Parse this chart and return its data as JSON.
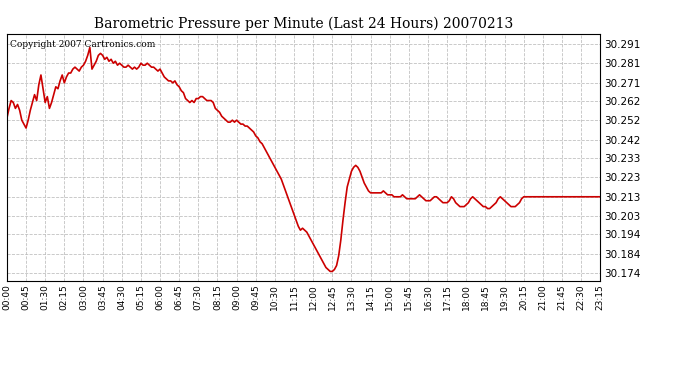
{
  "title": "Barometric Pressure per Minute (Last 24 Hours) 20070213",
  "copyright": "Copyright 2007 Cartronics.com",
  "line_color": "#cc0000",
  "background_color": "#ffffff",
  "plot_bg_color": "#ffffff",
  "grid_color": "#bbbbbb",
  "y_ticks": [
    30.174,
    30.184,
    30.194,
    30.203,
    30.213,
    30.223,
    30.233,
    30.242,
    30.252,
    30.262,
    30.271,
    30.281,
    30.291
  ],
  "ylim": [
    30.17,
    30.296
  ],
  "xlim": [
    0,
    1395
  ],
  "x_tick_positions": [
    0,
    45,
    90,
    135,
    180,
    225,
    270,
    315,
    360,
    405,
    450,
    495,
    540,
    585,
    630,
    675,
    720,
    765,
    810,
    855,
    900,
    945,
    990,
    1035,
    1080,
    1125,
    1170,
    1215,
    1260,
    1305,
    1350,
    1395
  ],
  "x_labels": [
    "00:00",
    "00:45",
    "01:30",
    "02:15",
    "03:00",
    "03:45",
    "04:30",
    "05:15",
    "06:00",
    "06:45",
    "07:30",
    "08:15",
    "09:00",
    "09:45",
    "10:30",
    "11:15",
    "12:00",
    "12:45",
    "13:30",
    "14:15",
    "15:00",
    "15:45",
    "16:30",
    "17:15",
    "18:00",
    "18:45",
    "19:30",
    "20:15",
    "21:00",
    "21:45",
    "22:30",
    "23:15"
  ],
  "pressure_data": [
    [
      0,
      30.253
    ],
    [
      5,
      30.258
    ],
    [
      10,
      30.262
    ],
    [
      15,
      30.261
    ],
    [
      20,
      30.258
    ],
    [
      25,
      30.26
    ],
    [
      30,
      30.257
    ],
    [
      35,
      30.252
    ],
    [
      40,
      30.25
    ],
    [
      45,
      30.248
    ],
    [
      50,
      30.252
    ],
    [
      55,
      30.257
    ],
    [
      60,
      30.261
    ],
    [
      65,
      30.265
    ],
    [
      70,
      30.262
    ],
    [
      75,
      30.27
    ],
    [
      80,
      30.275
    ],
    [
      85,
      30.268
    ],
    [
      90,
      30.261
    ],
    [
      95,
      30.264
    ],
    [
      100,
      30.258
    ],
    [
      105,
      30.261
    ],
    [
      110,
      30.265
    ],
    [
      115,
      30.269
    ],
    [
      120,
      30.268
    ],
    [
      125,
      30.272
    ],
    [
      130,
      30.275
    ],
    [
      135,
      30.271
    ],
    [
      140,
      30.274
    ],
    [
      145,
      30.276
    ],
    [
      150,
      30.276
    ],
    [
      155,
      30.278
    ],
    [
      160,
      30.279
    ],
    [
      165,
      30.278
    ],
    [
      170,
      30.277
    ],
    [
      175,
      30.279
    ],
    [
      180,
      30.28
    ],
    [
      185,
      30.282
    ],
    [
      190,
      30.285
    ],
    [
      195,
      30.289
    ],
    [
      200,
      30.278
    ],
    [
      205,
      30.28
    ],
    [
      210,
      30.282
    ],
    [
      215,
      30.285
    ],
    [
      220,
      30.286
    ],
    [
      225,
      30.285
    ],
    [
      230,
      30.283
    ],
    [
      235,
      30.284
    ],
    [
      240,
      30.282
    ],
    [
      245,
      30.283
    ],
    [
      250,
      30.281
    ],
    [
      255,
      30.282
    ],
    [
      260,
      30.28
    ],
    [
      265,
      30.281
    ],
    [
      270,
      30.28
    ],
    [
      275,
      30.279
    ],
    [
      280,
      30.279
    ],
    [
      285,
      30.28
    ],
    [
      290,
      30.279
    ],
    [
      295,
      30.278
    ],
    [
      300,
      30.279
    ],
    [
      305,
      30.278
    ],
    [
      310,
      30.279
    ],
    [
      315,
      30.281
    ],
    [
      320,
      30.28
    ],
    [
      325,
      30.28
    ],
    [
      330,
      30.281
    ],
    [
      335,
      30.28
    ],
    [
      340,
      30.279
    ],
    [
      345,
      30.279
    ],
    [
      350,
      30.278
    ],
    [
      355,
      30.277
    ],
    [
      360,
      30.278
    ],
    [
      365,
      30.276
    ],
    [
      370,
      30.274
    ],
    [
      375,
      30.273
    ],
    [
      380,
      30.272
    ],
    [
      385,
      30.272
    ],
    [
      390,
      30.271
    ],
    [
      395,
      30.272
    ],
    [
      400,
      30.27
    ],
    [
      405,
      30.269
    ],
    [
      410,
      30.267
    ],
    [
      415,
      30.266
    ],
    [
      420,
      30.263
    ],
    [
      425,
      30.262
    ],
    [
      430,
      30.261
    ],
    [
      435,
      30.262
    ],
    [
      440,
      30.261
    ],
    [
      445,
      30.263
    ],
    [
      450,
      30.263
    ],
    [
      455,
      30.264
    ],
    [
      460,
      30.264
    ],
    [
      465,
      30.263
    ],
    [
      470,
      30.262
    ],
    [
      475,
      30.262
    ],
    [
      480,
      30.262
    ],
    [
      485,
      30.261
    ],
    [
      490,
      30.258
    ],
    [
      495,
      30.257
    ],
    [
      500,
      30.256
    ],
    [
      505,
      30.254
    ],
    [
      510,
      30.253
    ],
    [
      515,
      30.252
    ],
    [
      520,
      30.251
    ],
    [
      525,
      30.251
    ],
    [
      530,
      30.252
    ],
    [
      535,
      30.251
    ],
    [
      540,
      30.252
    ],
    [
      545,
      30.251
    ],
    [
      550,
      30.25
    ],
    [
      555,
      30.25
    ],
    [
      560,
      30.249
    ],
    [
      565,
      30.249
    ],
    [
      570,
      30.248
    ],
    [
      575,
      30.247
    ],
    [
      580,
      30.246
    ],
    [
      585,
      30.244
    ],
    [
      590,
      30.243
    ],
    [
      595,
      30.241
    ],
    [
      600,
      30.24
    ],
    [
      605,
      30.238
    ],
    [
      610,
      30.236
    ],
    [
      615,
      30.234
    ],
    [
      620,
      30.232
    ],
    [
      625,
      30.23
    ],
    [
      630,
      30.228
    ],
    [
      635,
      30.226
    ],
    [
      640,
      30.224
    ],
    [
      645,
      30.222
    ],
    [
      650,
      30.219
    ],
    [
      655,
      30.216
    ],
    [
      660,
      30.213
    ],
    [
      665,
      30.21
    ],
    [
      670,
      30.207
    ],
    [
      675,
      30.204
    ],
    [
      680,
      30.201
    ],
    [
      685,
      30.198
    ],
    [
      690,
      30.196
    ],
    [
      695,
      30.197
    ],
    [
      700,
      30.196
    ],
    [
      705,
      30.195
    ],
    [
      710,
      30.193
    ],
    [
      715,
      30.191
    ],
    [
      720,
      30.189
    ],
    [
      725,
      30.187
    ],
    [
      730,
      30.185
    ],
    [
      735,
      30.183
    ],
    [
      740,
      30.181
    ],
    [
      745,
      30.179
    ],
    [
      750,
      30.177
    ],
    [
      755,
      30.176
    ],
    [
      760,
      30.175
    ],
    [
      765,
      30.175
    ],
    [
      770,
      30.176
    ],
    [
      775,
      30.178
    ],
    [
      780,
      30.183
    ],
    [
      785,
      30.191
    ],
    [
      790,
      30.201
    ],
    [
      795,
      30.21
    ],
    [
      800,
      30.218
    ],
    [
      805,
      30.222
    ],
    [
      810,
      30.226
    ],
    [
      815,
      30.228
    ],
    [
      820,
      30.229
    ],
    [
      825,
      30.228
    ],
    [
      830,
      30.226
    ],
    [
      835,
      30.223
    ],
    [
      840,
      30.22
    ],
    [
      845,
      30.218
    ],
    [
      850,
      30.216
    ],
    [
      855,
      30.215
    ],
    [
      860,
      30.215
    ],
    [
      865,
      30.215
    ],
    [
      870,
      30.215
    ],
    [
      875,
      30.215
    ],
    [
      880,
      30.215
    ],
    [
      885,
      30.216
    ],
    [
      890,
      30.215
    ],
    [
      895,
      30.214
    ],
    [
      900,
      30.214
    ],
    [
      905,
      30.214
    ],
    [
      910,
      30.213
    ],
    [
      915,
      30.213
    ],
    [
      920,
      30.213
    ],
    [
      925,
      30.213
    ],
    [
      930,
      30.214
    ],
    [
      935,
      30.213
    ],
    [
      940,
      30.212
    ],
    [
      945,
      30.212
    ],
    [
      950,
      30.212
    ],
    [
      955,
      30.212
    ],
    [
      960,
      30.212
    ],
    [
      965,
      30.213
    ],
    [
      970,
      30.214
    ],
    [
      975,
      30.213
    ],
    [
      980,
      30.212
    ],
    [
      985,
      30.211
    ],
    [
      990,
      30.211
    ],
    [
      995,
      30.211
    ],
    [
      1000,
      30.212
    ],
    [
      1005,
      30.213
    ],
    [
      1010,
      30.213
    ],
    [
      1015,
      30.212
    ],
    [
      1020,
      30.211
    ],
    [
      1025,
      30.21
    ],
    [
      1030,
      30.21
    ],
    [
      1035,
      30.21
    ],
    [
      1040,
      30.211
    ],
    [
      1045,
      30.213
    ],
    [
      1050,
      30.212
    ],
    [
      1055,
      30.21
    ],
    [
      1060,
      30.209
    ],
    [
      1065,
      30.208
    ],
    [
      1070,
      30.208
    ],
    [
      1075,
      30.208
    ],
    [
      1080,
      30.209
    ],
    [
      1085,
      30.21
    ],
    [
      1090,
      30.212
    ],
    [
      1095,
      30.213
    ],
    [
      1100,
      30.212
    ],
    [
      1105,
      30.211
    ],
    [
      1110,
      30.21
    ],
    [
      1115,
      30.209
    ],
    [
      1120,
      30.208
    ],
    [
      1125,
      30.208
    ],
    [
      1130,
      30.207
    ],
    [
      1135,
      30.207
    ],
    [
      1140,
      30.208
    ],
    [
      1145,
      30.209
    ],
    [
      1150,
      30.21
    ],
    [
      1155,
      30.212
    ],
    [
      1160,
      30.213
    ],
    [
      1165,
      30.212
    ],
    [
      1170,
      30.211
    ],
    [
      1175,
      30.21
    ],
    [
      1180,
      30.209
    ],
    [
      1185,
      30.208
    ],
    [
      1190,
      30.208
    ],
    [
      1195,
      30.208
    ],
    [
      1200,
      30.209
    ],
    [
      1205,
      30.21
    ],
    [
      1210,
      30.212
    ],
    [
      1215,
      30.213
    ],
    [
      1395,
      30.213
    ]
  ]
}
